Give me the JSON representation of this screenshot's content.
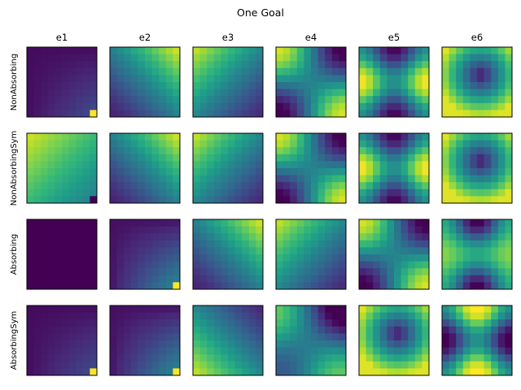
{
  "chart_data": {
    "type": "heatmap",
    "title": "One Goal",
    "grid_size": 10,
    "colormap": "viridis",
    "colormap_stops": [
      "#440154",
      "#482878",
      "#3e4989",
      "#31688e",
      "#26828e",
      "#1f9e89",
      "#35b779",
      "#6ece58",
      "#b5de2b",
      "#fde725"
    ],
    "frame_color": "#000000",
    "columns": [
      "e1",
      "e2",
      "e3",
      "e4",
      "e5",
      "e6"
    ],
    "rows": [
      "NonAbsorbing",
      "NonAbsorbingSym",
      "Absorbing",
      "AbsorbingSym"
    ],
    "patterns": [
      [
        "goal_spike_dark",
        "diag_up_right",
        "diag_up_left",
        "cross_hot_corners",
        "cross_hot_sides",
        "ring_dark_center"
      ],
      [
        "goal_dip_bright",
        "diag_up_right",
        "diag_up_left",
        "cross_hot_corners",
        "cross_hot_sides",
        "ring_dark_center"
      ],
      [
        "uniform_dark",
        "goal_spike_gradient",
        "diag_up_right",
        "diag_up_left",
        "cross_hot_corners",
        "cross_bright_sides"
      ],
      [
        "goal_spike_dark",
        "goal_spike_gradient",
        "diag_down_left",
        "diag_up_left_inverted",
        "ring_dark_center",
        "cross_hot_top_bottom"
      ]
    ]
  }
}
